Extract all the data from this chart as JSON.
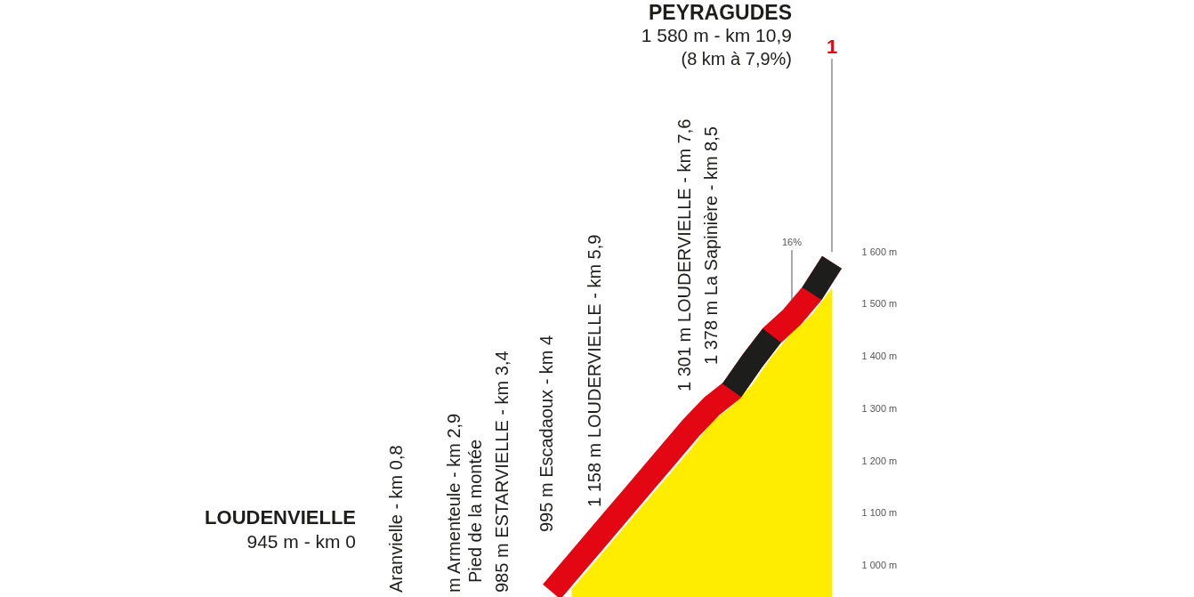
{
  "chart_data": {
    "type": "area",
    "ylim": [
      940,
      1600
    ],
    "yticks": [
      {
        "value": 1000,
        "label": "1 000 m"
      },
      {
        "value": 1100,
        "label": "1 100 m"
      },
      {
        "value": 1200,
        "label": "1 200 m"
      },
      {
        "value": 1300,
        "label": "1 300 m"
      },
      {
        "value": 1400,
        "label": "1 400 m"
      },
      {
        "value": 1500,
        "label": "1 500 m"
      },
      {
        "value": 1600,
        "label": "1 600 m"
      }
    ],
    "tick_labels": "y",
    "categories": [
      null,
      null,
      null,
      null,
      null,
      null,
      null,
      null,
      null,
      null,
      null,
      null,
      null,
      null,
      null
    ],
    "series": [
      {
        "color": "#ffed00",
        "values": [
          null,
          955,
          1000,
          1045,
          1090,
          1135,
          1180,
          1225,
          1275,
          1305,
          1345,
          1400,
          1445,
          1480,
          1530
        ]
      },
      {
        "type": "line",
        "color": "#e30613",
        "values": [
          950,
          995,
          1040,
          1085,
          1130,
          1175,
          1220,
          1265,
          1305,
          1335,
          1390,
          1440,
          1475,
          1520,
          1580
        ]
      },
      {
        "type": "line",
        "color": "#1d1d1b",
        "values": [
          null,
          null,
          null,
          null,
          null,
          null,
          null,
          null,
          null,
          1335,
          1390,
          1440,
          null,
          null,
          null
        ]
      },
      {
        "type": "line",
        "color": "#1d1d1b",
        "values": [
          null,
          null,
          null,
          null,
          null,
          null,
          null,
          null,
          null,
          null,
          null,
          null,
          null,
          1520,
          1580
        ]
      }
    ],
    "annotations": [
      "LOUDENVIELLE",
      "945 m - km 0",
      "Aranvielle - km 0,8",
      "m Armenteule - km 2,9",
      "Pied de la montée",
      "985 m ESTARVIELLE - km 3,4",
      "995 m Escadaoux - km 4",
      "1 158 m LOUDERVIELLE - km 5,9",
      "1 301 m LOUDERVIELLE - km 7,6",
      "1 378 m La Sapinière - km 8,5",
      "16%",
      "PEYRAGUDES",
      "1 580 m - km 10,9",
      "(8 km à 7,9%)",
      "1"
    ]
  }
}
